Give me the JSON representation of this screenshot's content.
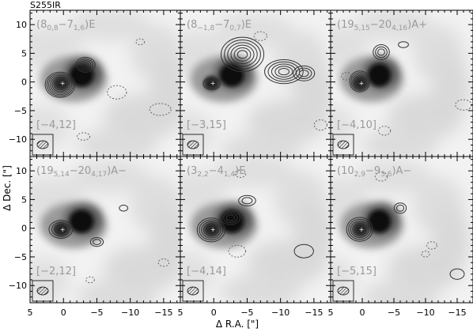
{
  "chart_data": {
    "type": "contour",
    "title": "S255IR",
    "xlabel": "Δ R.A. [\"]",
    "ylabel": "Δ Dec. [\"]",
    "xlim": [
      5,
      -17.5
    ],
    "ylim": [
      -13,
      12.5
    ],
    "xticks": [
      5,
      0,
      -5,
      -10,
      -15
    ],
    "yticks": [
      10,
      5,
      0,
      -5,
      -10
    ],
    "continuum_peaks": [
      {
        "x": -2.7,
        "y": 1.2
      },
      {
        "x": 0.3,
        "y": -0.2
      }
    ],
    "panels": [
      {
        "transition": "(8_{0,8}−7_{1,6})E",
        "velocity_range": "[−4,12]"
      },
      {
        "transition": "(8_{−1,8}−7_{0,7})E",
        "velocity_range": "[−3,15]"
      },
      {
        "transition": "(19_{5,15}−20_{4,16})A+",
        "velocity_range": "[−4,10]"
      },
      {
        "transition": "(19_{5,14}−20_{4,17})A−",
        "velocity_range": "[−2,12]"
      },
      {
        "transition": "(3_{2,2}−4_{1,4})E",
        "velocity_range": "[−4,14]"
      },
      {
        "transition": "(10_{2,9}−9_{3,6})A−",
        "velocity_range": "[−5,15]"
      }
    ]
  },
  "labels": {
    "source": "S255IR",
    "ylabel": "Δ Dec. [\"]",
    "xlabel": "Δ R.A. [\"]",
    "xticks": [
      "5",
      "0",
      "−5",
      "−10",
      "−15"
    ],
    "yticks": [
      "10",
      "5",
      "0",
      "−5",
      "−10"
    ]
  }
}
